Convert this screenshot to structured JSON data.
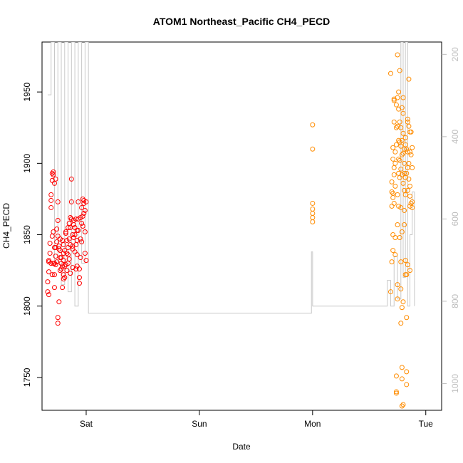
{
  "chart_data": {
    "type": "scatter",
    "title": "ATOM1 Northeast_Pacific CH4_PECD",
    "xlabel": "Date",
    "ylabel": "CH4_PECD",
    "x_unit": "days since Friday 00:00",
    "x_ticks": [
      {
        "label": "Sat",
        "value": 1
      },
      {
        "label": "Sun",
        "value": 2
      },
      {
        "label": "Mon",
        "value": 3
      },
      {
        "label": "Tue",
        "value": 4
      }
    ],
    "xlim": [
      0.61,
      4.14
    ],
    "ylim": [
      1727,
      1985
    ],
    "y_ticks": [
      1750,
      1800,
      1850,
      1900,
      1950
    ],
    "y2_ticks": [
      200,
      400,
      600,
      800,
      1000
    ],
    "y2lim": [
      1065,
      170
    ],
    "grid": false,
    "legend": "none",
    "colors": {
      "series_red": "#ff0000",
      "series_orange": "#ff8c00",
      "line": "#c8c8c8",
      "frame": "#000000",
      "right_axis": "#bdbdbd"
    },
    "series": [
      {
        "color": "#ff0000",
        "points": [
          [
            0.66,
            1817
          ],
          [
            0.66,
            1810
          ],
          [
            0.67,
            1808
          ],
          [
            0.67,
            1832
          ],
          [
            0.67,
            1824
          ],
          [
            0.67,
            1831
          ],
          [
            0.68,
            1837
          ],
          [
            0.68,
            1844
          ],
          [
            0.69,
            1830
          ],
          [
            0.69,
            1869
          ],
          [
            0.69,
            1874
          ],
          [
            0.69,
            1878
          ],
          [
            0.7,
            1893
          ],
          [
            0.7,
            1888
          ],
          [
            0.7,
            1849
          ],
          [
            0.7,
            1822
          ],
          [
            0.71,
            1894
          ],
          [
            0.71,
            1892
          ],
          [
            0.71,
            1830
          ],
          [
            0.71,
            1852
          ],
          [
            0.72,
            1841
          ],
          [
            0.72,
            1822
          ],
          [
            0.72,
            1813
          ],
          [
            0.72,
            1886
          ],
          [
            0.73,
            1889
          ],
          [
            0.73,
            1835
          ],
          [
            0.73,
            1841
          ],
          [
            0.73,
            1829
          ],
          [
            0.74,
            1831
          ],
          [
            0.74,
            1845
          ],
          [
            0.74,
            1854
          ],
          [
            0.75,
            1849
          ],
          [
            0.75,
            1860
          ],
          [
            0.75,
            1873
          ],
          [
            0.75,
            1792
          ],
          [
            0.75,
            1788
          ],
          [
            0.76,
            1803
          ],
          [
            0.76,
            1840
          ],
          [
            0.77,
            1839
          ],
          [
            0.77,
            1834
          ],
          [
            0.77,
            1825
          ],
          [
            0.77,
            1847
          ],
          [
            0.78,
            1830
          ],
          [
            0.78,
            1826
          ],
          [
            0.79,
            1828
          ],
          [
            0.79,
            1846
          ],
          [
            0.79,
            1813
          ],
          [
            0.8,
            1843
          ],
          [
            0.8,
            1822
          ],
          [
            0.8,
            1819
          ],
          [
            0.8,
            1837
          ],
          [
            0.81,
            1839
          ],
          [
            0.81,
            1828
          ],
          [
            0.81,
            1820
          ],
          [
            0.82,
            1829
          ],
          [
            0.82,
            1851
          ],
          [
            0.82,
            1852
          ],
          [
            0.83,
            1846
          ],
          [
            0.83,
            1825
          ],
          [
            0.83,
            1837
          ],
          [
            0.84,
            1841
          ],
          [
            0.84,
            1855
          ],
          [
            0.84,
            1836
          ],
          [
            0.85,
            1858
          ],
          [
            0.85,
            1833
          ],
          [
            0.85,
            1847
          ],
          [
            0.86,
            1862
          ],
          [
            0.86,
            1855
          ],
          [
            0.86,
            1843
          ],
          [
            0.87,
            1861
          ],
          [
            0.87,
            1873
          ],
          [
            0.87,
            1889
          ],
          [
            0.88,
            1840
          ],
          [
            0.88,
            1850
          ],
          [
            0.88,
            1827
          ],
          [
            0.89,
            1860
          ],
          [
            0.89,
            1857
          ],
          [
            0.89,
            1848
          ],
          [
            0.9,
            1838
          ],
          [
            0.9,
            1850
          ],
          [
            0.91,
            1826
          ],
          [
            0.91,
            1843
          ],
          [
            0.91,
            1861
          ],
          [
            0.92,
            1853
          ],
          [
            0.92,
            1836
          ],
          [
            0.92,
            1828
          ],
          [
            0.93,
            1861
          ],
          [
            0.93,
            1873
          ],
          [
            0.93,
            1853
          ],
          [
            0.94,
            1820
          ],
          [
            0.94,
            1816
          ],
          [
            0.94,
            1826
          ],
          [
            0.95,
            1862
          ],
          [
            0.95,
            1847
          ],
          [
            0.95,
            1834
          ],
          [
            0.96,
            1858
          ],
          [
            0.96,
            1869
          ],
          [
            0.97,
            1875
          ],
          [
            0.97,
            1863
          ],
          [
            0.97,
            1856
          ],
          [
            0.98,
            1865
          ],
          [
            0.98,
            1872
          ],
          [
            0.98,
            1874
          ],
          [
            0.99,
            1867
          ],
          [
            0.99,
            1852
          ],
          [
            0.99,
            1837
          ],
          [
            1.0,
            1832
          ],
          [
            1.0,
            1873
          ],
          [
            0.96,
            1845
          ],
          [
            0.9,
            1855
          ],
          [
            0.84,
            1830
          ],
          [
            0.78,
            1834
          ],
          [
            0.72,
            1830
          ],
          [
            0.86,
            1823
          ],
          [
            0.92,
            1846
          ],
          [
            0.8,
            1832
          ],
          [
            0.88,
            1842
          ],
          [
            0.76,
            1842
          ]
        ]
      },
      {
        "color": "#ff8c00",
        "points": [
          [
            3.0,
            1927
          ],
          [
            3.0,
            1910
          ],
          [
            3.0,
            1872
          ],
          [
            3.0,
            1868
          ],
          [
            3.0,
            1865
          ],
          [
            3.0,
            1862
          ],
          [
            3.0,
            1859
          ],
          [
            3.69,
            1963
          ],
          [
            3.69,
            1810
          ],
          [
            3.7,
            1831
          ],
          [
            3.7,
            1880
          ],
          [
            3.7,
            1870
          ],
          [
            3.7,
            1887
          ],
          [
            3.71,
            1879
          ],
          [
            3.71,
            1876
          ],
          [
            3.71,
            1850
          ],
          [
            3.71,
            1839
          ],
          [
            3.71,
            1903
          ],
          [
            3.71,
            1911
          ],
          [
            3.72,
            1945
          ],
          [
            3.72,
            1944
          ],
          [
            3.72,
            1929
          ],
          [
            3.72,
            1897
          ],
          [
            3.72,
            1892
          ],
          [
            3.72,
            1872
          ],
          [
            3.73,
            1908
          ],
          [
            3.73,
            1884
          ],
          [
            3.73,
            1848
          ],
          [
            3.73,
            1836
          ],
          [
            3.74,
            1941
          ],
          [
            3.74,
            1925
          ],
          [
            3.74,
            1913
          ],
          [
            3.74,
            1751
          ],
          [
            3.74,
            1740
          ],
          [
            3.74,
            1739
          ],
          [
            3.75,
            1976
          ],
          [
            3.75,
            1946
          ],
          [
            3.75,
            1926
          ],
          [
            3.75,
            1878
          ],
          [
            3.75,
            1857
          ],
          [
            3.75,
            1805
          ],
          [
            3.76,
            1950
          ],
          [
            3.76,
            1938
          ],
          [
            3.76,
            1916
          ],
          [
            3.76,
            1903
          ],
          [
            3.76,
            1893
          ],
          [
            3.77,
            1902
          ],
          [
            3.77,
            1890
          ],
          [
            3.77,
            1965
          ],
          [
            3.77,
            1929
          ],
          [
            3.77,
            1848
          ],
          [
            3.78,
            1925
          ],
          [
            3.78,
            1912
          ],
          [
            3.78,
            1896
          ],
          [
            3.78,
            1869
          ],
          [
            3.78,
            1831
          ],
          [
            3.78,
            1812
          ],
          [
            3.79,
            1939
          ],
          [
            3.79,
            1916
          ],
          [
            3.79,
            1906
          ],
          [
            3.79,
            1892
          ],
          [
            3.79,
            1852
          ],
          [
            3.79,
            1730
          ],
          [
            3.79,
            1799
          ],
          [
            3.79,
            1749
          ],
          [
            3.79,
            1757
          ],
          [
            3.8,
            1946
          ],
          [
            3.8,
            1935
          ],
          [
            3.8,
            1921
          ],
          [
            3.8,
            1907
          ],
          [
            3.8,
            1886
          ],
          [
            3.8,
            1803
          ],
          [
            3.8,
            1731
          ],
          [
            3.81,
            1910
          ],
          [
            3.81,
            1900
          ],
          [
            3.81,
            1881
          ],
          [
            3.81,
            1867
          ],
          [
            3.81,
            1857
          ],
          [
            3.82,
            1913
          ],
          [
            3.82,
            1890
          ],
          [
            3.82,
            1878
          ],
          [
            3.82,
            1832
          ],
          [
            3.82,
            1822
          ],
          [
            3.83,
            1910
          ],
          [
            3.83,
            1893
          ],
          [
            3.83,
            1822
          ],
          [
            3.83,
            1754
          ],
          [
            3.83,
            1745
          ],
          [
            3.83,
            1792
          ],
          [
            3.84,
            1931
          ],
          [
            3.84,
            1929
          ],
          [
            3.84,
            1908
          ],
          [
            3.84,
            1897
          ],
          [
            3.84,
            1881
          ],
          [
            3.84,
            1829
          ],
          [
            3.85,
            1959
          ],
          [
            3.85,
            1926
          ],
          [
            3.85,
            1900
          ],
          [
            3.85,
            1889
          ],
          [
            3.86,
            1922
          ],
          [
            3.86,
            1908
          ],
          [
            3.86,
            1884
          ],
          [
            3.86,
            1877
          ],
          [
            3.86,
            1870
          ],
          [
            3.86,
            1825
          ],
          [
            3.87,
            1922
          ],
          [
            3.87,
            1906
          ],
          [
            3.87,
            1872
          ],
          [
            3.88,
            1911
          ],
          [
            3.88,
            1897
          ],
          [
            3.88,
            1869
          ],
          [
            3.88,
            1873
          ],
          [
            3.78,
            1788
          ],
          [
            3.75,
            1815
          ],
          [
            3.82,
            1918
          ],
          [
            3.76,
            1870
          ],
          [
            3.73,
            1900
          ],
          [
            3.81,
            1893
          ],
          [
            3.77,
            1915
          ]
        ]
      }
    ],
    "line_x": [
      0.66,
      0.69,
      0.72,
      0.75,
      0.78,
      0.81,
      0.84,
      0.87,
      0.9,
      0.93,
      0.96,
      0.99,
      1.02,
      2.99,
      3.0,
      3.66,
      3.69,
      3.72,
      3.75,
      3.78,
      3.8,
      3.82,
      3.84,
      3.86,
      3.88,
      3.9
    ],
    "line_y": [
      1948,
      1985,
      1830,
      1985,
      1815,
      1985,
      1810,
      1985,
      1800,
      1985,
      1830,
      1985,
      1795,
      1838,
      1800,
      1818,
      1800,
      1835,
      1805,
      1985,
      1820,
      1985,
      1800,
      1850,
      1880,
      1800
    ]
  }
}
